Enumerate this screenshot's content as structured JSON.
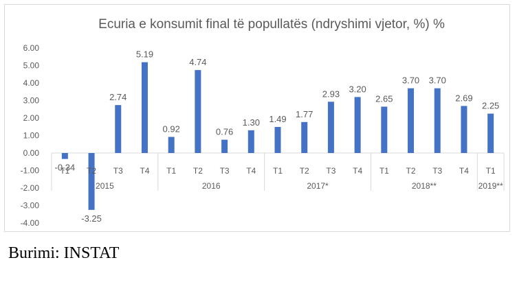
{
  "chart_data": {
    "type": "bar",
    "title": "Ecuria e konsumit final të popullatës (ndryshimi vjetor, %) %",
    "categories": [
      "T1",
      "T2",
      "T3",
      "T4",
      "T1",
      "T2",
      "T3",
      "T4",
      "T1",
      "T2",
      "T3",
      "T4",
      "T1",
      "T2",
      "T3",
      "T4",
      "T1"
    ],
    "groups": [
      {
        "label": "2015",
        "count": 4
      },
      {
        "label": "2016",
        "count": 4
      },
      {
        "label": "2017*",
        "count": 4
      },
      {
        "label": "2018**",
        "count": 4
      },
      {
        "label": "2019**",
        "count": 1
      }
    ],
    "values": [
      -0.34,
      -3.25,
      2.74,
      5.19,
      0.92,
      4.74,
      0.76,
      1.3,
      1.49,
      1.77,
      2.93,
      3.2,
      2.65,
      3.7,
      3.7,
      2.69,
      2.25
    ],
    "data_labels": [
      "-0.34",
      "-3.25",
      "2.74",
      "5.19",
      "0.92",
      "4.74",
      "0.76",
      "1.30",
      "1.49",
      "1.77",
      "2.93",
      "3.20",
      "2.65",
      "3.70",
      "3.70",
      "2.69",
      "2.25"
    ],
    "yticks": [
      "6.00",
      "5.00",
      "4.00",
      "3.00",
      "2.00",
      "1.00",
      "0.00",
      "-1.00",
      "-2.00",
      "-3.00",
      "-4.00"
    ],
    "ylim": [
      -4,
      6
    ],
    "bar_color": "#4472c4",
    "grid": false,
    "legend": "none"
  },
  "source": "Burimi: INSTAT"
}
